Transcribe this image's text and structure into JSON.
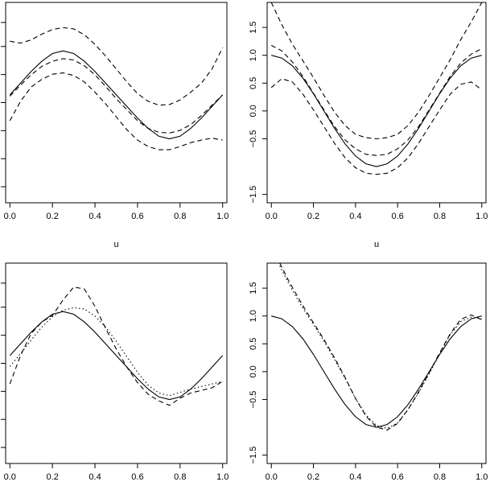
{
  "chart_data": [
    {
      "type": "line",
      "xlabel": "u",
      "xlim": [
        -0.02,
        1.02
      ],
      "ylim": [
        -1.15,
        1.95
      ],
      "xticks": [
        "0.0",
        "0.2",
        "0.4",
        "0.6",
        "0.8",
        "1.0"
      ],
      "yticks": [],
      "series": [
        {
          "style": "solid",
          "x": [
            0,
            0.05,
            0.1,
            0.15,
            0.2,
            0.25,
            0.3,
            0.35,
            0.4,
            0.45,
            0.5,
            0.55,
            0.6,
            0.65,
            0.7,
            0.75,
            0.8,
            0.85,
            0.9,
            0.95,
            1.0
          ],
          "y": [
            0.52,
            0.7,
            0.88,
            1.04,
            1.16,
            1.2,
            1.16,
            1.04,
            0.88,
            0.7,
            0.52,
            0.34,
            0.16,
            0.0,
            -0.12,
            -0.16,
            -0.12,
            0.0,
            0.16,
            0.34,
            0.52
          ]
        },
        {
          "style": "dashed",
          "x": [
            0,
            0.05,
            0.1,
            0.15,
            0.2,
            0.25,
            0.3,
            0.35,
            0.4,
            0.45,
            0.5,
            0.55,
            0.6,
            0.65,
            0.7,
            0.75,
            0.8,
            0.85,
            0.9,
            0.95,
            1.0
          ],
          "y": [
            1.35,
            1.32,
            1.37,
            1.46,
            1.53,
            1.56,
            1.54,
            1.45,
            1.3,
            1.12,
            0.92,
            0.72,
            0.54,
            0.42,
            0.36,
            0.37,
            0.44,
            0.56,
            0.7,
            0.92,
            1.25
          ]
        },
        {
          "style": "dashed",
          "x": [
            0,
            0.05,
            0.1,
            0.15,
            0.2,
            0.25,
            0.3,
            0.35,
            0.4,
            0.45,
            0.5,
            0.55,
            0.6,
            0.65,
            0.7,
            0.75,
            0.8,
            0.85,
            0.9,
            0.95,
            1.0
          ],
          "y": [
            0.5,
            0.67,
            0.83,
            0.96,
            1.04,
            1.08,
            1.06,
            0.97,
            0.83,
            0.65,
            0.46,
            0.29,
            0.12,
            0.0,
            -0.06,
            -0.07,
            -0.03,
            0.06,
            0.2,
            0.36,
            0.52
          ]
        },
        {
          "style": "dashed",
          "x": [
            0,
            0.05,
            0.1,
            0.15,
            0.2,
            0.25,
            0.3,
            0.35,
            0.4,
            0.45,
            0.5,
            0.55,
            0.6,
            0.65,
            0.7,
            0.75,
            0.8,
            0.85,
            0.9,
            0.95,
            1.0
          ],
          "y": [
            0.12,
            0.42,
            0.64,
            0.76,
            0.84,
            0.86,
            0.82,
            0.72,
            0.56,
            0.38,
            0.18,
            -0.02,
            -0.18,
            -0.28,
            -0.33,
            -0.33,
            -0.28,
            -0.22,
            -0.18,
            -0.15,
            -0.18
          ]
        }
      ]
    },
    {
      "type": "line",
      "xlabel": "u",
      "xlim": [
        -0.02,
        1.02
      ],
      "ylim": [
        -1.65,
        1.95
      ],
      "xticks": [
        "0.0",
        "0.2",
        "0.4",
        "0.6",
        "0.8",
        "1.0"
      ],
      "yticks": [
        "−1.5",
        "−0.5",
        "0.0",
        "0.5",
        "1.0",
        "1.5"
      ],
      "ytick_values": [
        -1.5,
        -0.5,
        0.0,
        0.5,
        1.0,
        1.5
      ],
      "series": [
        {
          "style": "solid",
          "x": [
            0,
            0.05,
            0.1,
            0.15,
            0.2,
            0.25,
            0.3,
            0.35,
            0.4,
            0.45,
            0.5,
            0.55,
            0.6,
            0.65,
            0.7,
            0.75,
            0.8,
            0.85,
            0.9,
            0.95,
            1.0
          ],
          "y": [
            1.0,
            0.95,
            0.81,
            0.59,
            0.31,
            0.0,
            -0.31,
            -0.59,
            -0.81,
            -0.95,
            -1.0,
            -0.95,
            -0.81,
            -0.59,
            -0.31,
            0.0,
            0.31,
            0.59,
            0.81,
            0.95,
            1.0
          ]
        },
        {
          "style": "dashed",
          "x": [
            0,
            0.05,
            0.1,
            0.15,
            0.2,
            0.25,
            0.3,
            0.35,
            0.4,
            0.45,
            0.5,
            0.55,
            0.6,
            0.65,
            0.7,
            0.75,
            0.8,
            0.85,
            0.9,
            0.95,
            1.0
          ],
          "y": [
            1.95,
            1.55,
            1.2,
            0.9,
            0.6,
            0.28,
            -0.02,
            -0.26,
            -0.42,
            -0.48,
            -0.5,
            -0.48,
            -0.42,
            -0.26,
            -0.02,
            0.28,
            0.6,
            0.92,
            1.28,
            1.6,
            1.95
          ]
        },
        {
          "style": "dashed",
          "x": [
            0,
            0.05,
            0.1,
            0.15,
            0.2,
            0.25,
            0.3,
            0.35,
            0.4,
            0.45,
            0.5,
            0.55,
            0.6,
            0.65,
            0.7,
            0.75,
            0.8,
            0.85,
            0.9,
            0.95,
            1.0
          ],
          "y": [
            1.18,
            1.08,
            0.88,
            0.62,
            0.32,
            0.02,
            -0.28,
            -0.52,
            -0.68,
            -0.78,
            -0.8,
            -0.78,
            -0.68,
            -0.52,
            -0.28,
            0.02,
            0.32,
            0.62,
            0.86,
            1.02,
            1.12
          ]
        },
        {
          "style": "dashed",
          "x": [
            0,
            0.05,
            0.1,
            0.15,
            0.2,
            0.25,
            0.3,
            0.35,
            0.4,
            0.45,
            0.5,
            0.55,
            0.6,
            0.65,
            0.7,
            0.75,
            0.8,
            0.85,
            0.9,
            0.95,
            1.0
          ],
          "y": [
            0.42,
            0.58,
            0.52,
            0.3,
            0.02,
            -0.28,
            -0.58,
            -0.84,
            -1.02,
            -1.12,
            -1.14,
            -1.12,
            -1.02,
            -0.84,
            -0.58,
            -0.28,
            0.02,
            0.3,
            0.48,
            0.52,
            0.38
          ]
        }
      ]
    },
    {
      "type": "line",
      "xlabel": "",
      "xlim": [
        -0.02,
        1.02
      ],
      "ylim": [
        -1.15,
        1.95
      ],
      "xticks": [
        "0.0",
        "0.2",
        "0.4",
        "0.6",
        "0.8",
        "1.0"
      ],
      "yticks": [],
      "series": [
        {
          "style": "solid",
          "x": [
            0,
            0.05,
            0.1,
            0.15,
            0.2,
            0.25,
            0.3,
            0.35,
            0.4,
            0.45,
            0.5,
            0.55,
            0.6,
            0.65,
            0.7,
            0.75,
            0.8,
            0.85,
            0.9,
            0.95,
            1.0
          ],
          "y": [
            0.52,
            0.7,
            0.88,
            1.04,
            1.16,
            1.2,
            1.16,
            1.04,
            0.88,
            0.7,
            0.52,
            0.34,
            0.16,
            0.0,
            -0.12,
            -0.16,
            -0.12,
            0.0,
            0.16,
            0.34,
            0.52
          ]
        },
        {
          "style": "dashed",
          "x": [
            0,
            0.05,
            0.1,
            0.15,
            0.2,
            0.25,
            0.3,
            0.35,
            0.4,
            0.45,
            0.5,
            0.55,
            0.6,
            0.65,
            0.7,
            0.75,
            0.8,
            0.85,
            0.9,
            0.95,
            1.0
          ],
          "y": [
            0.08,
            0.52,
            0.86,
            1.04,
            1.14,
            1.38,
            1.58,
            1.55,
            1.28,
            0.94,
            0.62,
            0.34,
            0.1,
            -0.08,
            -0.18,
            -0.25,
            -0.14,
            -0.06,
            -0.02,
            0.02,
            0.12
          ]
        },
        {
          "style": "dotted",
          "x": [
            0,
            0.05,
            0.1,
            0.15,
            0.2,
            0.25,
            0.3,
            0.35,
            0.4,
            0.45,
            0.5,
            0.55,
            0.6,
            0.65,
            0.7,
            0.75,
            0.8,
            0.85,
            0.9,
            0.95,
            1.0
          ],
          "y": [
            0.35,
            0.55,
            0.76,
            0.96,
            1.12,
            1.22,
            1.26,
            1.24,
            1.13,
            0.96,
            0.74,
            0.5,
            0.26,
            0.06,
            -0.06,
            -0.1,
            -0.05,
            0.0,
            0.04,
            0.08,
            0.12
          ]
        }
      ]
    },
    {
      "type": "line",
      "xlabel": "",
      "xlim": [
        -0.02,
        1.02
      ],
      "ylim": [
        -1.65,
        1.95
      ],
      "xticks": [
        "0.0",
        "0.2",
        "0.4",
        "0.6",
        "0.8",
        "1.0"
      ],
      "yticks": [
        "−1.5",
        "−0.5",
        "0.0",
        "0.5",
        "1.0",
        "1.5"
      ],
      "ytick_values": [
        -1.5,
        -0.5,
        0.0,
        0.5,
        1.0,
        1.5
      ],
      "series": [
        {
          "style": "solid",
          "x": [
            0,
            0.05,
            0.1,
            0.15,
            0.2,
            0.25,
            0.3,
            0.35,
            0.4,
            0.45,
            0.5,
            0.55,
            0.6,
            0.65,
            0.7,
            0.75,
            0.8,
            0.85,
            0.9,
            0.95,
            1.0
          ],
          "y": [
            1.0,
            0.95,
            0.81,
            0.59,
            0.31,
            0.0,
            -0.31,
            -0.59,
            -0.81,
            -0.95,
            -1.0,
            -0.95,
            -0.81,
            -0.59,
            -0.31,
            0.0,
            0.31,
            0.59,
            0.81,
            0.95,
            1.0
          ]
        },
        {
          "style": "dashed",
          "x": [
            0.04,
            0.08,
            0.12,
            0.16,
            0.2,
            0.25,
            0.3,
            0.35,
            0.4,
            0.45,
            0.5,
            0.55,
            0.6,
            0.65,
            0.7,
            0.75,
            0.8,
            0.85,
            0.9,
            0.95,
            1.0
          ],
          "y": [
            1.95,
            1.65,
            1.38,
            1.12,
            0.88,
            0.58,
            0.25,
            -0.1,
            -0.48,
            -0.8,
            -1.0,
            -1.05,
            -0.93,
            -0.68,
            -0.36,
            -0.02,
            0.34,
            0.68,
            0.94,
            1.02,
            0.93
          ]
        },
        {
          "style": "dotted",
          "x": [
            0.04,
            0.08,
            0.12,
            0.16,
            0.2,
            0.25,
            0.3,
            0.35,
            0.4,
            0.45,
            0.5,
            0.55,
            0.6,
            0.65,
            0.7,
            0.75,
            0.8,
            0.85,
            0.9,
            0.95,
            1.0
          ],
          "y": [
            1.9,
            1.6,
            1.33,
            1.08,
            0.85,
            0.55,
            0.22,
            -0.12,
            -0.48,
            -0.78,
            -0.97,
            -1.02,
            -0.92,
            -0.68,
            -0.38,
            -0.04,
            0.32,
            0.66,
            0.9,
            0.98,
            0.95
          ]
        }
      ]
    }
  ]
}
